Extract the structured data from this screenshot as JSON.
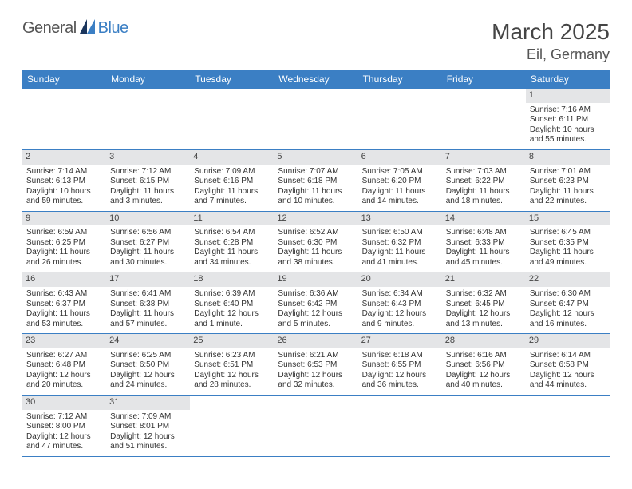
{
  "logo": {
    "general": "General",
    "blue": "Blue"
  },
  "title": "March 2025",
  "location": "Eil, Germany",
  "colors": {
    "header_bg": "#3b7fc4",
    "header_text": "#ffffff",
    "daynum_bg": "#e4e5e7",
    "row_border": "#3b7fc4",
    "text": "#333333",
    "background": "#ffffff"
  },
  "day_names": [
    "Sunday",
    "Monday",
    "Tuesday",
    "Wednesday",
    "Thursday",
    "Friday",
    "Saturday"
  ],
  "weeks": [
    [
      null,
      null,
      null,
      null,
      null,
      null,
      {
        "n": "1",
        "sunrise": "Sunrise: 7:16 AM",
        "sunset": "Sunset: 6:11 PM",
        "day1": "Daylight: 10 hours",
        "day2": "and 55 minutes."
      }
    ],
    [
      {
        "n": "2",
        "sunrise": "Sunrise: 7:14 AM",
        "sunset": "Sunset: 6:13 PM",
        "day1": "Daylight: 10 hours",
        "day2": "and 59 minutes."
      },
      {
        "n": "3",
        "sunrise": "Sunrise: 7:12 AM",
        "sunset": "Sunset: 6:15 PM",
        "day1": "Daylight: 11 hours",
        "day2": "and 3 minutes."
      },
      {
        "n": "4",
        "sunrise": "Sunrise: 7:09 AM",
        "sunset": "Sunset: 6:16 PM",
        "day1": "Daylight: 11 hours",
        "day2": "and 7 minutes."
      },
      {
        "n": "5",
        "sunrise": "Sunrise: 7:07 AM",
        "sunset": "Sunset: 6:18 PM",
        "day1": "Daylight: 11 hours",
        "day2": "and 10 minutes."
      },
      {
        "n": "6",
        "sunrise": "Sunrise: 7:05 AM",
        "sunset": "Sunset: 6:20 PM",
        "day1": "Daylight: 11 hours",
        "day2": "and 14 minutes."
      },
      {
        "n": "7",
        "sunrise": "Sunrise: 7:03 AM",
        "sunset": "Sunset: 6:22 PM",
        "day1": "Daylight: 11 hours",
        "day2": "and 18 minutes."
      },
      {
        "n": "8",
        "sunrise": "Sunrise: 7:01 AM",
        "sunset": "Sunset: 6:23 PM",
        "day1": "Daylight: 11 hours",
        "day2": "and 22 minutes."
      }
    ],
    [
      {
        "n": "9",
        "sunrise": "Sunrise: 6:59 AM",
        "sunset": "Sunset: 6:25 PM",
        "day1": "Daylight: 11 hours",
        "day2": "and 26 minutes."
      },
      {
        "n": "10",
        "sunrise": "Sunrise: 6:56 AM",
        "sunset": "Sunset: 6:27 PM",
        "day1": "Daylight: 11 hours",
        "day2": "and 30 minutes."
      },
      {
        "n": "11",
        "sunrise": "Sunrise: 6:54 AM",
        "sunset": "Sunset: 6:28 PM",
        "day1": "Daylight: 11 hours",
        "day2": "and 34 minutes."
      },
      {
        "n": "12",
        "sunrise": "Sunrise: 6:52 AM",
        "sunset": "Sunset: 6:30 PM",
        "day1": "Daylight: 11 hours",
        "day2": "and 38 minutes."
      },
      {
        "n": "13",
        "sunrise": "Sunrise: 6:50 AM",
        "sunset": "Sunset: 6:32 PM",
        "day1": "Daylight: 11 hours",
        "day2": "and 41 minutes."
      },
      {
        "n": "14",
        "sunrise": "Sunrise: 6:48 AM",
        "sunset": "Sunset: 6:33 PM",
        "day1": "Daylight: 11 hours",
        "day2": "and 45 minutes."
      },
      {
        "n": "15",
        "sunrise": "Sunrise: 6:45 AM",
        "sunset": "Sunset: 6:35 PM",
        "day1": "Daylight: 11 hours",
        "day2": "and 49 minutes."
      }
    ],
    [
      {
        "n": "16",
        "sunrise": "Sunrise: 6:43 AM",
        "sunset": "Sunset: 6:37 PM",
        "day1": "Daylight: 11 hours",
        "day2": "and 53 minutes."
      },
      {
        "n": "17",
        "sunrise": "Sunrise: 6:41 AM",
        "sunset": "Sunset: 6:38 PM",
        "day1": "Daylight: 11 hours",
        "day2": "and 57 minutes."
      },
      {
        "n": "18",
        "sunrise": "Sunrise: 6:39 AM",
        "sunset": "Sunset: 6:40 PM",
        "day1": "Daylight: 12 hours",
        "day2": "and 1 minute."
      },
      {
        "n": "19",
        "sunrise": "Sunrise: 6:36 AM",
        "sunset": "Sunset: 6:42 PM",
        "day1": "Daylight: 12 hours",
        "day2": "and 5 minutes."
      },
      {
        "n": "20",
        "sunrise": "Sunrise: 6:34 AM",
        "sunset": "Sunset: 6:43 PM",
        "day1": "Daylight: 12 hours",
        "day2": "and 9 minutes."
      },
      {
        "n": "21",
        "sunrise": "Sunrise: 6:32 AM",
        "sunset": "Sunset: 6:45 PM",
        "day1": "Daylight: 12 hours",
        "day2": "and 13 minutes."
      },
      {
        "n": "22",
        "sunrise": "Sunrise: 6:30 AM",
        "sunset": "Sunset: 6:47 PM",
        "day1": "Daylight: 12 hours",
        "day2": "and 16 minutes."
      }
    ],
    [
      {
        "n": "23",
        "sunrise": "Sunrise: 6:27 AM",
        "sunset": "Sunset: 6:48 PM",
        "day1": "Daylight: 12 hours",
        "day2": "and 20 minutes."
      },
      {
        "n": "24",
        "sunrise": "Sunrise: 6:25 AM",
        "sunset": "Sunset: 6:50 PM",
        "day1": "Daylight: 12 hours",
        "day2": "and 24 minutes."
      },
      {
        "n": "25",
        "sunrise": "Sunrise: 6:23 AM",
        "sunset": "Sunset: 6:51 PM",
        "day1": "Daylight: 12 hours",
        "day2": "and 28 minutes."
      },
      {
        "n": "26",
        "sunrise": "Sunrise: 6:21 AM",
        "sunset": "Sunset: 6:53 PM",
        "day1": "Daylight: 12 hours",
        "day2": "and 32 minutes."
      },
      {
        "n": "27",
        "sunrise": "Sunrise: 6:18 AM",
        "sunset": "Sunset: 6:55 PM",
        "day1": "Daylight: 12 hours",
        "day2": "and 36 minutes."
      },
      {
        "n": "28",
        "sunrise": "Sunrise: 6:16 AM",
        "sunset": "Sunset: 6:56 PM",
        "day1": "Daylight: 12 hours",
        "day2": "and 40 minutes."
      },
      {
        "n": "29",
        "sunrise": "Sunrise: 6:14 AM",
        "sunset": "Sunset: 6:58 PM",
        "day1": "Daylight: 12 hours",
        "day2": "and 44 minutes."
      }
    ],
    [
      {
        "n": "30",
        "sunrise": "Sunrise: 7:12 AM",
        "sunset": "Sunset: 8:00 PM",
        "day1": "Daylight: 12 hours",
        "day2": "and 47 minutes."
      },
      {
        "n": "31",
        "sunrise": "Sunrise: 7:09 AM",
        "sunset": "Sunset: 8:01 PM",
        "day1": "Daylight: 12 hours",
        "day2": "and 51 minutes."
      },
      null,
      null,
      null,
      null,
      null
    ]
  ]
}
